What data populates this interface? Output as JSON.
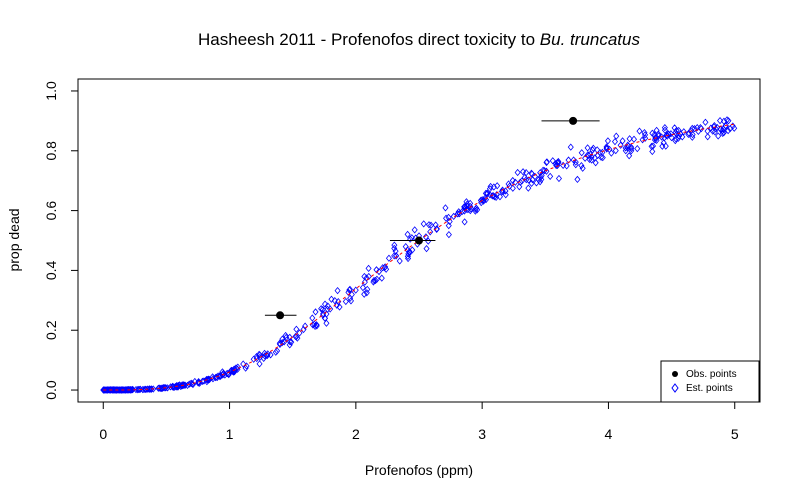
{
  "chart_data": {
    "type": "scatter",
    "title_plain": "Hasheesh 2011 - Profenofos direct toxicity to ",
    "title_italic": "Bu. truncatus",
    "xlabel": "Profenofos (ppm)",
    "ylabel": "prop dead",
    "xlim": [
      -0.2,
      5.2
    ],
    "ylim": [
      -0.04,
      1.04
    ],
    "xticks": [
      0,
      1,
      2,
      3,
      4,
      5
    ],
    "yticks": [
      0.0,
      0.2,
      0.4,
      0.6,
      0.8,
      1.0
    ],
    "ytick_labels": [
      "0.0",
      "0.2",
      "0.4",
      "0.6",
      "0.8",
      "1.0"
    ],
    "grid": false,
    "legend_position": "bottom-right",
    "legend": [
      {
        "label": "Obs. points",
        "marker": "filled-circle",
        "color": "#000000"
      },
      {
        "label": "Est. points",
        "marker": "open-diamond",
        "color": "#0000ff"
      }
    ],
    "series": [
      {
        "name": "Obs. points",
        "marker": "filled-circle",
        "color": "#000000",
        "points": [
          {
            "x": 1.4,
            "y": 0.25,
            "xerr": [
              1.28,
              1.53
            ]
          },
          {
            "x": 2.5,
            "y": 0.5,
            "xerr": [
              2.27,
              2.63
            ]
          },
          {
            "x": 3.72,
            "y": 0.9,
            "xerr": [
              3.47,
              3.93
            ]
          }
        ]
      },
      {
        "name": "Est. points",
        "marker": "open-diamond",
        "color": "#0000ff",
        "curve": {
          "form": "log-logistic",
          "ec50": 2.5,
          "slope": 3.0,
          "noise_sd": 0.035,
          "n": 520,
          "x_range": [
            0.0,
            5.0
          ]
        }
      }
    ],
    "fit_line": {
      "color": "#ff0000",
      "style": "dashed"
    }
  }
}
